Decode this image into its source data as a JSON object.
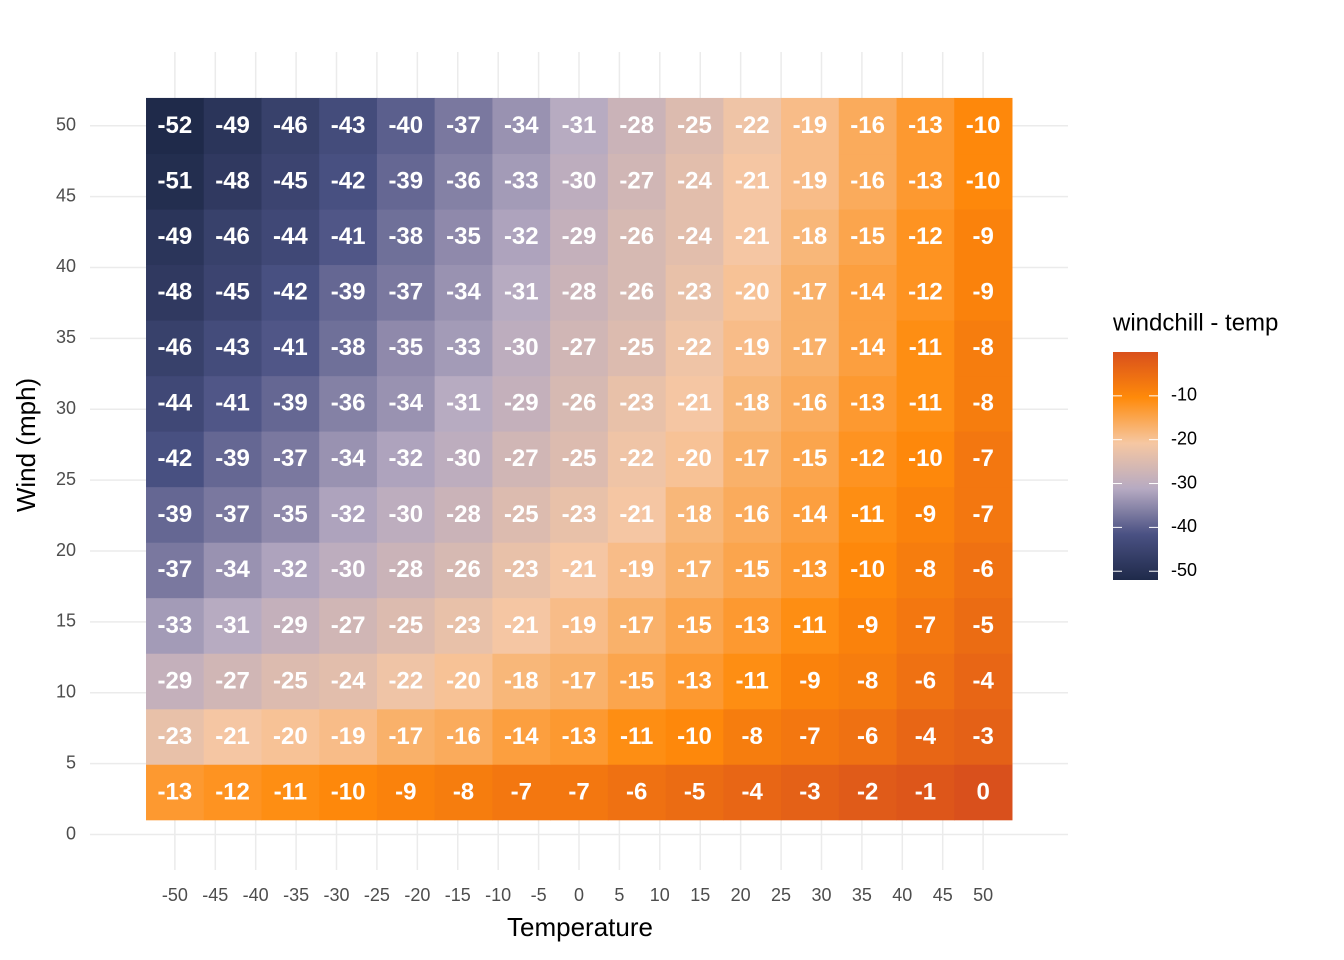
{
  "chart_data": {
    "type": "heatmap",
    "x_label": "Temperature",
    "y_label": "Wind (mph)",
    "x": [
      -50,
      -42.86,
      -35.71,
      -28.57,
      -21.43,
      -14.29,
      -7.14,
      0,
      7.14,
      14.29,
      21.43,
      28.57,
      35.71,
      42.86,
      50
    ],
    "y": [
      3,
      6.92,
      10.83,
      14.75,
      18.67,
      22.58,
      26.5,
      30.42,
      34.33,
      38.25,
      42.17,
      46.08,
      50
    ],
    "values": [
      [
        -13,
        -12,
        -11,
        -10,
        -9,
        -8,
        -7,
        -7,
        -6,
        -5,
        -4,
        -3,
        -2,
        -1,
        0
      ],
      [
        -23,
        -21,
        -20,
        -19,
        -17,
        -16,
        -14,
        -13,
        -11,
        -10,
        -8,
        -7,
        -6,
        -4,
        -3
      ],
      [
        -29,
        -27,
        -25,
        -24,
        -22,
        -20,
        -18,
        -17,
        -15,
        -13,
        -11,
        -9,
        -8,
        -6,
        -4
      ],
      [
        -33,
        -31,
        -29,
        -27,
        -25,
        -23,
        -21,
        -19,
        -17,
        -15,
        -13,
        -11,
        -9,
        -7,
        -5
      ],
      [
        -37,
        -34,
        -32,
        -30,
        -28,
        -26,
        -23,
        -21,
        -19,
        -17,
        -15,
        -13,
        -10,
        -8,
        -6
      ],
      [
        -39,
        -37,
        -35,
        -32,
        -30,
        -28,
        -25,
        -23,
        -21,
        -18,
        -16,
        -14,
        -11,
        -9,
        -7
      ],
      [
        -42,
        -39,
        -37,
        -34,
        -32,
        -30,
        -27,
        -25,
        -22,
        -20,
        -17,
        -15,
        -12,
        -10,
        -7
      ],
      [
        -44,
        -41,
        -39,
        -36,
        -34,
        -31,
        -29,
        -26,
        -23,
        -21,
        -18,
        -16,
        -13,
        -11,
        -8
      ],
      [
        -46,
        -43,
        -41,
        -38,
        -35,
        -33,
        -30,
        -27,
        -25,
        -22,
        -19,
        -17,
        -14,
        -11,
        -8
      ],
      [
        -48,
        -45,
        -42,
        -39,
        -37,
        -34,
        -31,
        -28,
        -26,
        -23,
        -20,
        -17,
        -14,
        -12,
        -9
      ],
      [
        -49,
        -46,
        -44,
        -41,
        -38,
        -35,
        -32,
        -29,
        -26,
        -24,
        -21,
        -18,
        -15,
        -12,
        -9
      ],
      [
        -51,
        -48,
        -45,
        -42,
        -39,
        -36,
        -33,
        -30,
        -27,
        -24,
        -21,
        -19,
        -16,
        -13,
        -10
      ],
      [
        -52,
        -49,
        -46,
        -43,
        -40,
        -37,
        -34,
        -31,
        -28,
        -25,
        -22,
        -19,
        -16,
        -13,
        -10
      ]
    ],
    "xlim": [
      -60.5,
      60.5
    ],
    "ylim": [
      -2.5,
      55.2
    ],
    "xticks": [
      -50,
      -45,
      -40,
      -35,
      -30,
      -25,
      -20,
      -15,
      -10,
      -5,
      0,
      5,
      10,
      15,
      20,
      25,
      30,
      35,
      40,
      45,
      50
    ],
    "yticks": [
      0,
      5,
      10,
      15,
      20,
      25,
      30,
      35,
      40,
      45,
      50
    ],
    "grid": true,
    "legend_title": "windchill - temp",
    "clim": [
      -52,
      0
    ],
    "legend_ticks": [
      -50,
      -40,
      -30,
      -20,
      -10
    ],
    "color_stops": [
      "#1f2a4a",
      "#4a5183",
      "#b6aac2",
      "#f6c7a2",
      "#ff8a0a",
      "#d9501c"
    ]
  }
}
